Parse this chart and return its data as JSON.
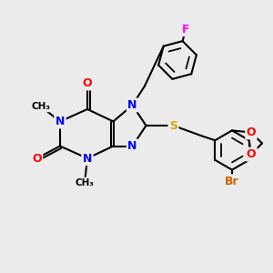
{
  "background_color": "#ebebeb",
  "bond_color": "#000000",
  "atom_colors": {
    "N": "#0000ff",
    "O": "#ff0000",
    "S": "#ccaa00",
    "F": "#ff00ff",
    "Br": "#cc6600",
    "C": "#000000"
  },
  "font_size": 9,
  "bond_width": 1.5
}
